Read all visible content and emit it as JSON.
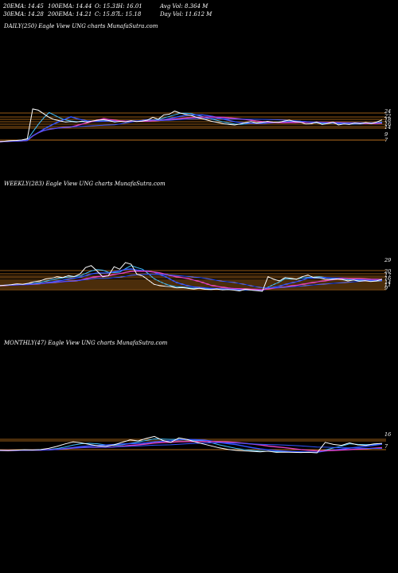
{
  "header": {
    "ema20": "20EMA: 14.45",
    "ema30": "30EMA: 14.28",
    "ema100": "100EMA: 14.44",
    "ema200": "200EMA: 14.21",
    "open": "O: 15.31",
    "close": "C: 15.87",
    "high": "H: 16.01",
    "low": "L: 15.18",
    "avg_vol": "Avg Vol: 8.364  M",
    "day_vol": "Day Vol: 11.612  M"
  },
  "colors": {
    "background": "#000000",
    "price_line": "#ffffff",
    "band_lines": "#c8781e",
    "ma_blue": "#3355ff",
    "ma_pink": "#e040c0",
    "ma_cyan": "#40c0ff"
  },
  "chart_data": [
    {
      "type": "line",
      "title": "DAILY(250) Eagle  View  UNG charts MunafaSutra.com",
      "level_labels": [
        "24",
        "22",
        "18",
        "16",
        "14",
        "9",
        "7"
      ],
      "series": [
        {
          "values": [
            6.8,
            7.0,
            7.2,
            7.3,
            7.5,
            8.0,
            20.5,
            20.0,
            18.5,
            17.0,
            16.0,
            15.5,
            15.0,
            15.2,
            15.0,
            15.4,
            15.0,
            15.5,
            15.8,
            16.0,
            15.6,
            15.0,
            15.3,
            15.1,
            15.6,
            15.2,
            15.4,
            15.8,
            17.0,
            16.2,
            18.0,
            18.3,
            19.6,
            18.8,
            18.2,
            17.8,
            17.0,
            16.5,
            15.8,
            15.2,
            14.8,
            14.3,
            14.0,
            13.8,
            14.2,
            14.8,
            15.2,
            14.6,
            14.9,
            15.3,
            15.0,
            14.9,
            15.4,
            15.8,
            15.2,
            15.0,
            14.2,
            14.3,
            15.0,
            14.0,
            14.4,
            15.0,
            13.8,
            14.2,
            14.0,
            14.6,
            14.3,
            14.8,
            14.4,
            15.0,
            15.9
          ]
        }
      ]
    },
    {
      "type": "line",
      "title": "WEEKLY(283) Eagle  View  UNG charts MunafaSutra.com",
      "level_labels": [
        "29",
        "20",
        "17",
        "16",
        "14",
        "11",
        "9"
      ],
      "series": [
        {
          "values": [
            13.2,
            13.5,
            13.8,
            14.2,
            14.0,
            14.6,
            15.5,
            16.0,
            17.2,
            17.5,
            18.5,
            18.0,
            19.2,
            18.6,
            20.0,
            24.0,
            25.2,
            22.0,
            18.5,
            19.0,
            24.5,
            23.0,
            27.0,
            26.0,
            20.0,
            19.0,
            16.5,
            14.0,
            13.2,
            12.8,
            12.5,
            11.8,
            12.0,
            11.5,
            11.2,
            11.6,
            11.0,
            10.8,
            11.2,
            10.6,
            10.8,
            10.5,
            10.0,
            11.0,
            10.5,
            10.2,
            9.8,
            18.5,
            17.0,
            16.0,
            18.0,
            17.5,
            17.0,
            18.5,
            19.5,
            18.0,
            17.8,
            17.0,
            16.8,
            17.2,
            16.8,
            16.0,
            16.5,
            15.8,
            16.2,
            15.6,
            16.0,
            17.0
          ]
        }
      ]
    },
    {
      "type": "line",
      "title": "MONTHLY(47) Eagle  View  UNG charts MunafaSutra.com",
      "level_labels": [
        "16",
        "7"
      ],
      "series": [
        {
          "values": [
            9.0,
            8.8,
            9.2,
            9.6,
            9.4,
            9.8,
            11.0,
            13.0,
            15.5,
            17.5,
            16.5,
            15.0,
            13.5,
            13.0,
            14.5,
            17.0,
            19.5,
            18.5,
            21.0,
            23.0,
            19.0,
            17.0,
            21.5,
            20.0,
            17.5,
            15.5,
            13.5,
            11.5,
            10.0,
            9.0,
            8.5,
            8.0,
            7.5,
            8.2,
            7.0,
            7.2,
            7.0,
            6.8,
            7.0,
            6.5,
            17.0,
            15.0,
            14.0,
            16.5,
            14.5,
            14.0,
            15.5,
            16.0
          ]
        }
      ]
    }
  ]
}
